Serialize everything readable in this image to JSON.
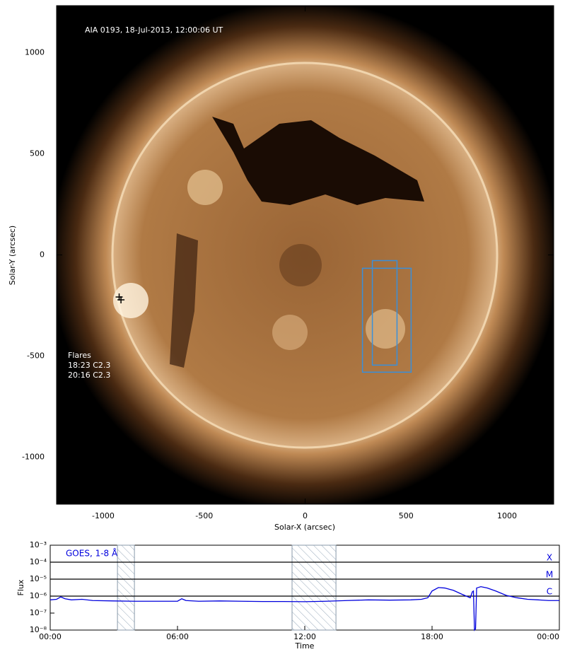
{
  "chart_data": [
    {
      "type": "image",
      "title": "AIA 0193, 18-Jul-2013, 12:00:06 UT",
      "x_label": "Solar-X (arcsec)",
      "y_label": "Solar-Y (arcsec)",
      "xlim": [
        -1231,
        1231
      ],
      "ylim": [
        -1233,
        1233
      ],
      "xticks": [
        -1000,
        -500,
        0,
        500,
        1000
      ],
      "yticks": [
        -1000,
        -500,
        0,
        500,
        1000
      ],
      "flares_heading": "Flares",
      "flares": [
        "18:23 C2.3",
        "20:16 C2.3"
      ],
      "flare_x": [
        -921,
        -912
      ],
      "flare_y": [
        -208,
        -222
      ],
      "boxes": [
        {
          "x": [
            284,
            525
          ],
          "y": [
            -580,
            -66
          ]
        },
        {
          "x": [
            333,
            455
          ],
          "y": [
            -545,
            -28
          ]
        }
      ],
      "box_color": "#3a8fd9"
    },
    {
      "type": "line",
      "label": "GOES, 1-8 Å",
      "x_label": "Time",
      "y_label": "Flux",
      "log_y": true,
      "xlim": [
        0,
        24
      ],
      "ylim": [
        1e-08,
        0.001
      ],
      "xticks": [
        {
          "value": 0,
          "label": "00:00"
        },
        {
          "value": 6,
          "label": "06:00"
        },
        {
          "value": 12,
          "label": "12:00"
        },
        {
          "value": 18,
          "label": "18:00"
        },
        {
          "value": 24,
          "label": "00:00"
        }
      ],
      "yticks": [
        {
          "value": 1e-08,
          "label": "10⁻⁸"
        },
        {
          "value": 1e-07,
          "label": "10⁻⁷"
        },
        {
          "value": 1e-06,
          "label": "10⁻⁶"
        },
        {
          "value": 1e-05,
          "label": "10⁻⁵"
        },
        {
          "value": 0.0001,
          "label": "10⁻⁴"
        },
        {
          "value": 0.001,
          "label": "10⁻³"
        }
      ],
      "levels": [
        {
          "value": 0.0001,
          "label": "X"
        },
        {
          "value": 1e-05,
          "label": "M"
        },
        {
          "value": 1e-06,
          "label": "C"
        }
      ],
      "shaded": [
        [
          3.17,
          3.97
        ],
        [
          11.4,
          13.47
        ]
      ],
      "series": [
        {
          "color": "#0000dd",
          "x": [
            0,
            0.3,
            0.5,
            0.7,
            1,
            1.5,
            2,
            3,
            4,
            5,
            6,
            6.2,
            6.4,
            7,
            8,
            9,
            10,
            11,
            12,
            13,
            14,
            15,
            16,
            17,
            17.5,
            17.8,
            18,
            18.3,
            18.6,
            19,
            19.4,
            19.8,
            19.9,
            19.95,
            20,
            20.05,
            20.1,
            20.3,
            20.6,
            21,
            21.5,
            22,
            22.5,
            23,
            23.5,
            24
          ],
          "values": [
            6e-07,
            6.5e-07,
            9e-07,
            7e-07,
            6e-07,
            6.5e-07,
            5.5e-07,
            5.2e-07,
            5e-07,
            5e-07,
            5e-07,
            7e-07,
            5.5e-07,
            5e-07,
            5.2e-07,
            5e-07,
            4.8e-07,
            4.8e-07,
            4.7e-07,
            5e-07,
            5.5e-07,
            6e-07,
            5.8e-07,
            6e-07,
            6.5e-07,
            8e-07,
            2e-06,
            3.2e-06,
            3e-06,
            2.2e-06,
            1.3e-06,
            8e-07,
            1.8e-06,
            2e-06,
            1e-08,
            1.2e-08,
            3e-06,
            3.6e-06,
            3e-06,
            2e-06,
            1.1e-06,
            8e-07,
            6.5e-07,
            6e-07,
            5.5e-07,
            5.5e-07
          ]
        }
      ]
    }
  ]
}
